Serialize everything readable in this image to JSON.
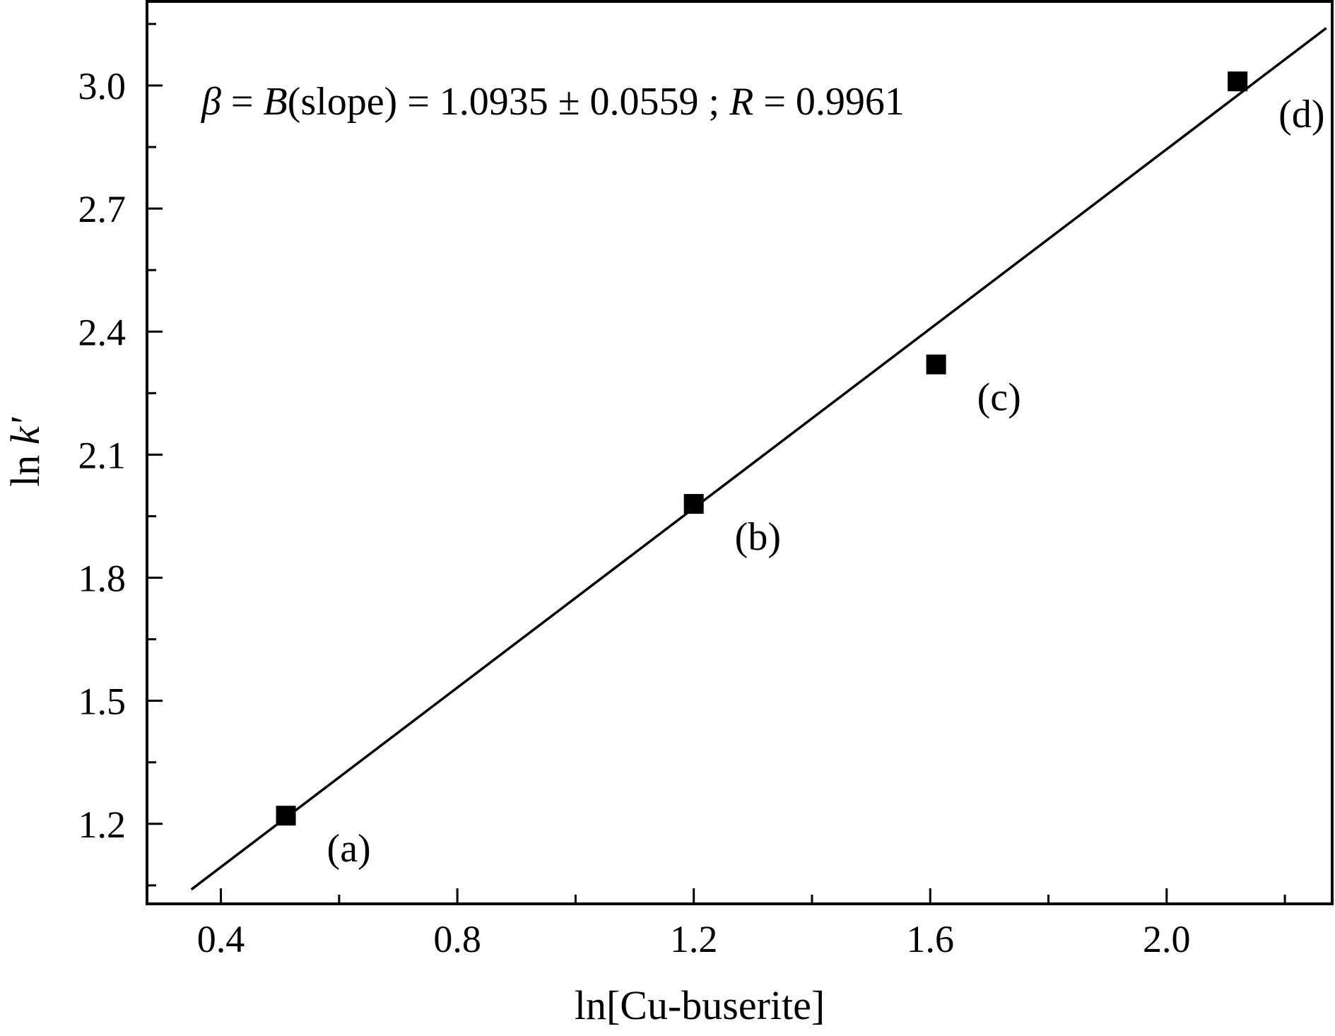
{
  "chart_data": {
    "type": "scatter",
    "title": "",
    "xlabel": "ln[Cu-buserite]",
    "ylabel": "ln k'",
    "ylabel_parts": {
      "prefix": "ln ",
      "var": "k'"
    },
    "xlim": [
      0.275,
      2.28
    ],
    "ylim": [
      1.005,
      3.205
    ],
    "x_ticks": [
      0.4,
      0.6,
      0.8,
      1.0,
      1.2,
      1.4,
      1.6,
      1.8,
      2.0,
      2.2
    ],
    "x_tick_labels": [
      "0.4",
      "",
      "0.8",
      "",
      "1.2",
      "",
      "1.6",
      "",
      "2.0",
      ""
    ],
    "y_ticks": [
      1.05,
      1.2,
      1.35,
      1.5,
      1.65,
      1.8,
      1.95,
      2.1,
      2.25,
      2.4,
      2.55,
      2.7,
      2.85,
      3.0,
      3.15
    ],
    "y_tick_labels": [
      "",
      "1.2",
      "",
      "1.5",
      "",
      "1.8",
      "",
      "2.1",
      "",
      "2.4",
      "",
      "2.7",
      "",
      "3.0",
      ""
    ],
    "grid": false,
    "points": [
      {
        "x": 0.51,
        "y": 1.22,
        "label": "(a)"
      },
      {
        "x": 1.2,
        "y": 1.98,
        "label": "(b)"
      },
      {
        "x": 1.61,
        "y": 2.32,
        "label": "(c)"
      },
      {
        "x": 2.12,
        "y": 3.01,
        "label": "(d)"
      }
    ],
    "fit_line": {
      "x": [
        0.35,
        2.27
      ],
      "y": [
        1.04,
        3.14
      ]
    },
    "annotation": {
      "beta": "β",
      "eq1": " = ",
      "B": "B",
      "rest": "(slope) = 1.0935 ± 0.0559 ; ",
      "R": "R",
      "rval": " = 0.9961"
    },
    "colors": {
      "marker": "#000000",
      "line": "#000000"
    }
  }
}
